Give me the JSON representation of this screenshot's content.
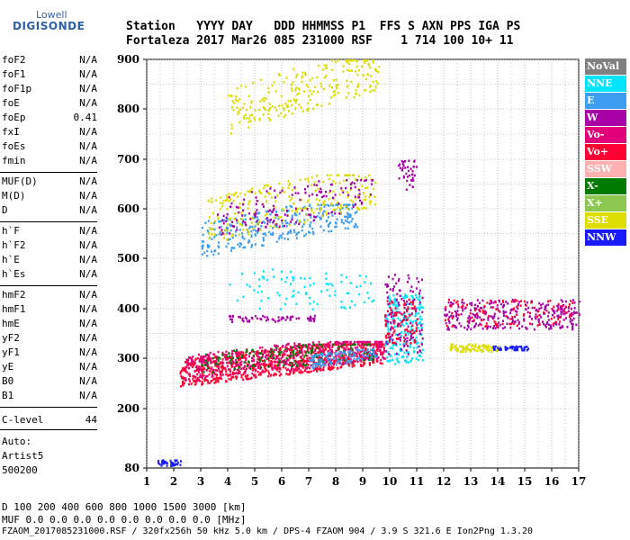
{
  "brand": {
    "line1": "Lowell",
    "line2": "DIGISONDE"
  },
  "header": {
    "line1": "Station   YYYY DAY   DDD HHMMSS P1  FFS S AXN PPS IGA PS",
    "line2": "Fortaleza 2017 Mar26 085 231000 RSF    1 714 100 10+ 11"
  },
  "params_group1": [
    {
      "name": "foF2",
      "value": "N/A"
    },
    {
      "name": "foF1",
      "value": "N/A"
    },
    {
      "name": "foF1p",
      "value": "N/A"
    },
    {
      "name": "foE",
      "value": "N/A"
    },
    {
      "name": "foEp",
      "value": "0.41"
    },
    {
      "name": "fxI",
      "value": "N/A"
    },
    {
      "name": "foEs",
      "value": "N/A"
    },
    {
      "name": "fmin",
      "value": "N/A"
    }
  ],
  "params_group2": [
    {
      "name": "MUF(D)",
      "value": "N/A"
    },
    {
      "name": "M(D)",
      "value": "N/A"
    },
    {
      "name": "D",
      "value": "N/A"
    }
  ],
  "params_group3": [
    {
      "name": "h`F",
      "value": "N/A"
    },
    {
      "name": "h`F2",
      "value": "N/A"
    },
    {
      "name": "h`E",
      "value": "N/A"
    },
    {
      "name": "h`Es",
      "value": "N/A"
    }
  ],
  "params_group4": [
    {
      "name": "hmF2",
      "value": "N/A"
    },
    {
      "name": "hmF1",
      "value": "N/A"
    },
    {
      "name": "hmE",
      "value": "N/A"
    },
    {
      "name": "yF2",
      "value": "N/A"
    },
    {
      "name": "yF1",
      "value": "N/A"
    },
    {
      "name": "yE",
      "value": "N/A"
    },
    {
      "name": "B0",
      "value": "N/A"
    },
    {
      "name": "B1",
      "value": "N/A"
    }
  ],
  "c_level": {
    "name": "C-level",
    "value": "44"
  },
  "auto": {
    "label": "Auto:",
    "line2": "Artist5",
    "line3": "500200"
  },
  "bottom": {
    "d_row": "D     100  200  400  600  800 1000 1500 3000 [km]",
    "muf_row": "MUF   0.0  0.0  0.0  0.0  0.0  0.0  0.0  0.0 [MHz]",
    "footer": "FZAOM_2017085231000.RSF / 320fx256h 50 kHz 5.0 km / DPS-4 FZAOM 904 / 3.9 S 321.6 E   Ion2Png 1.3.20"
  },
  "chart_data": {
    "type": "scatter",
    "x_ticks": [
      "1",
      "2",
      "3",
      "4",
      "5",
      "6",
      "7",
      "8",
      "9",
      "10",
      "11",
      "12",
      "13",
      "14",
      "15",
      "16",
      "17"
    ],
    "y_ticks": [
      "80",
      "200",
      "300",
      "400",
      "500",
      "600",
      "700",
      "800",
      "900"
    ],
    "xlim": [
      1,
      17
    ],
    "ylim": [
      80,
      900
    ],
    "grid": true,
    "legend_placement": "right",
    "legend": [
      {
        "name": "NoVal",
        "color": "#808080"
      },
      {
        "name": "NNE",
        "color": "#00e5ff"
      },
      {
        "name": "E",
        "color": "#3d9df0"
      },
      {
        "name": "W",
        "color": "#a600a6"
      },
      {
        "name": "Vo-",
        "color": "#e0007a"
      },
      {
        "name": "Vo+",
        "color": "#ff0033"
      },
      {
        "name": "SSW",
        "color": "#ffb0b0"
      },
      {
        "name": "X-",
        "color": "#007a00"
      },
      {
        "name": "X+",
        "color": "#8cc850"
      },
      {
        "name": "SSE",
        "color": "#dddd00"
      },
      {
        "name": "NNW",
        "color": "#1a1aff"
      }
    ],
    "clusters": [
      {
        "series": "Vo+",
        "x0": 2.2,
        "x1": 9.8,
        "y0": 245,
        "y1": 330,
        "n": 900,
        "slope": 0.55
      },
      {
        "series": "Vo-",
        "x0": 2.4,
        "x1": 9.8,
        "y0": 255,
        "y1": 335,
        "n": 450,
        "slope": 0.55
      },
      {
        "series": "X-",
        "x0": 3.0,
        "x1": 9.5,
        "y0": 270,
        "y1": 330,
        "n": 160,
        "slope": 0.5
      },
      {
        "series": "E",
        "x0": 7.0,
        "x1": 9.5,
        "y0": 280,
        "y1": 320,
        "n": 120,
        "slope": 0.5
      },
      {
        "series": "NNE",
        "x0": 9.8,
        "x1": 11.2,
        "y0": 290,
        "y1": 430,
        "n": 220,
        "slope": 0
      },
      {
        "series": "W",
        "x0": 9.8,
        "x1": 11.2,
        "y0": 310,
        "y1": 470,
        "n": 120,
        "slope": 0
      },
      {
        "series": "Vo+",
        "x0": 9.8,
        "x1": 11.0,
        "y0": 330,
        "y1": 420,
        "n": 90,
        "slope": 0
      },
      {
        "series": "W",
        "x0": 12.0,
        "x1": 17.0,
        "y0": 360,
        "y1": 420,
        "n": 300,
        "slope": 0
      },
      {
        "series": "Vo+",
        "x0": 12.0,
        "x1": 16.8,
        "y0": 365,
        "y1": 420,
        "n": 110,
        "slope": 0
      },
      {
        "series": "SSE",
        "x0": 12.2,
        "x1": 14.0,
        "y0": 315,
        "y1": 330,
        "n": 90,
        "slope": 0
      },
      {
        "series": "NNW",
        "x0": 13.8,
        "x1": 15.2,
        "y0": 318,
        "y1": 326,
        "n": 50,
        "slope": 0
      },
      {
        "series": "E",
        "x0": 3.0,
        "x1": 8.8,
        "y0": 505,
        "y1": 610,
        "n": 320,
        "slope": 0.55
      },
      {
        "series": "SSE",
        "x0": 3.2,
        "x1": 9.5,
        "y0": 530,
        "y1": 670,
        "n": 260,
        "slope": 0.55
      },
      {
        "series": "W",
        "x0": 3.6,
        "x1": 9.4,
        "y0": 540,
        "y1": 660,
        "n": 150,
        "slope": 0.5
      },
      {
        "series": "SSE",
        "x0": 4.0,
        "x1": 9.6,
        "y0": 750,
        "y1": 900,
        "n": 240,
        "slope": 0.6
      },
      {
        "series": "NNW",
        "x0": 1.4,
        "x1": 2.3,
        "y0": 86,
        "y1": 98,
        "n": 40,
        "slope": 0
      },
      {
        "series": "NNE",
        "x0": 4.0,
        "x1": 9.5,
        "y0": 400,
        "y1": 480,
        "n": 90,
        "slope": 0
      },
      {
        "series": "W",
        "x0": 4.0,
        "x1": 7.2,
        "y0": 375,
        "y1": 388,
        "n": 60,
        "slope": 0
      },
      {
        "series": "W",
        "x0": 10.3,
        "x1": 11.0,
        "y0": 640,
        "y1": 700,
        "n": 40,
        "slope": 0
      }
    ]
  }
}
